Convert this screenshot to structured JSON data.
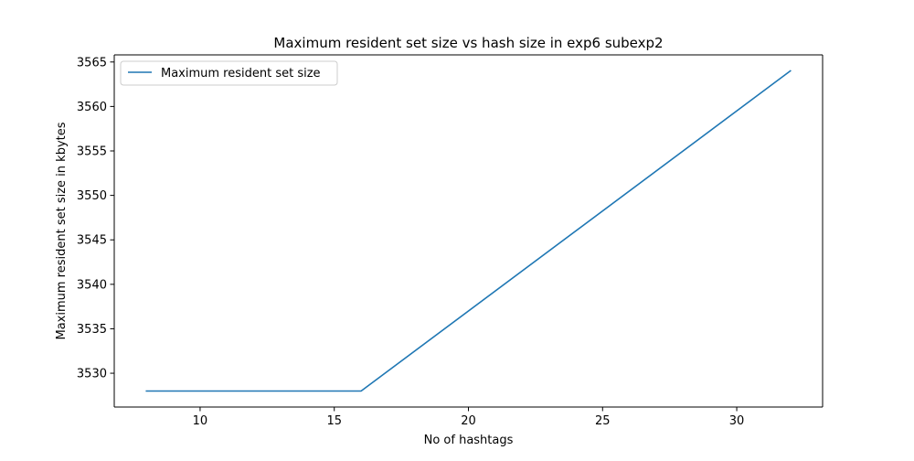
{
  "chart_data": {
    "type": "line",
    "title": "Maximum resident set size vs hash size in exp6 subexp2",
    "xlabel": "No of hashtags",
    "ylabel": "Maximum resident set size in kbytes",
    "xlim": [
      6.8,
      33.2
    ],
    "ylim": [
      3526.2,
      3565.8
    ],
    "xticks": [
      10,
      15,
      20,
      25,
      30
    ],
    "yticks": [
      3530,
      3535,
      3540,
      3545,
      3550,
      3555,
      3560,
      3565
    ],
    "grid": false,
    "legend_position": "upper-left",
    "series": [
      {
        "name": "Maximum resident set size",
        "color": "#1f77b4",
        "x": [
          8,
          16,
          32
        ],
        "y": [
          3528,
          3528,
          3564
        ]
      }
    ]
  }
}
